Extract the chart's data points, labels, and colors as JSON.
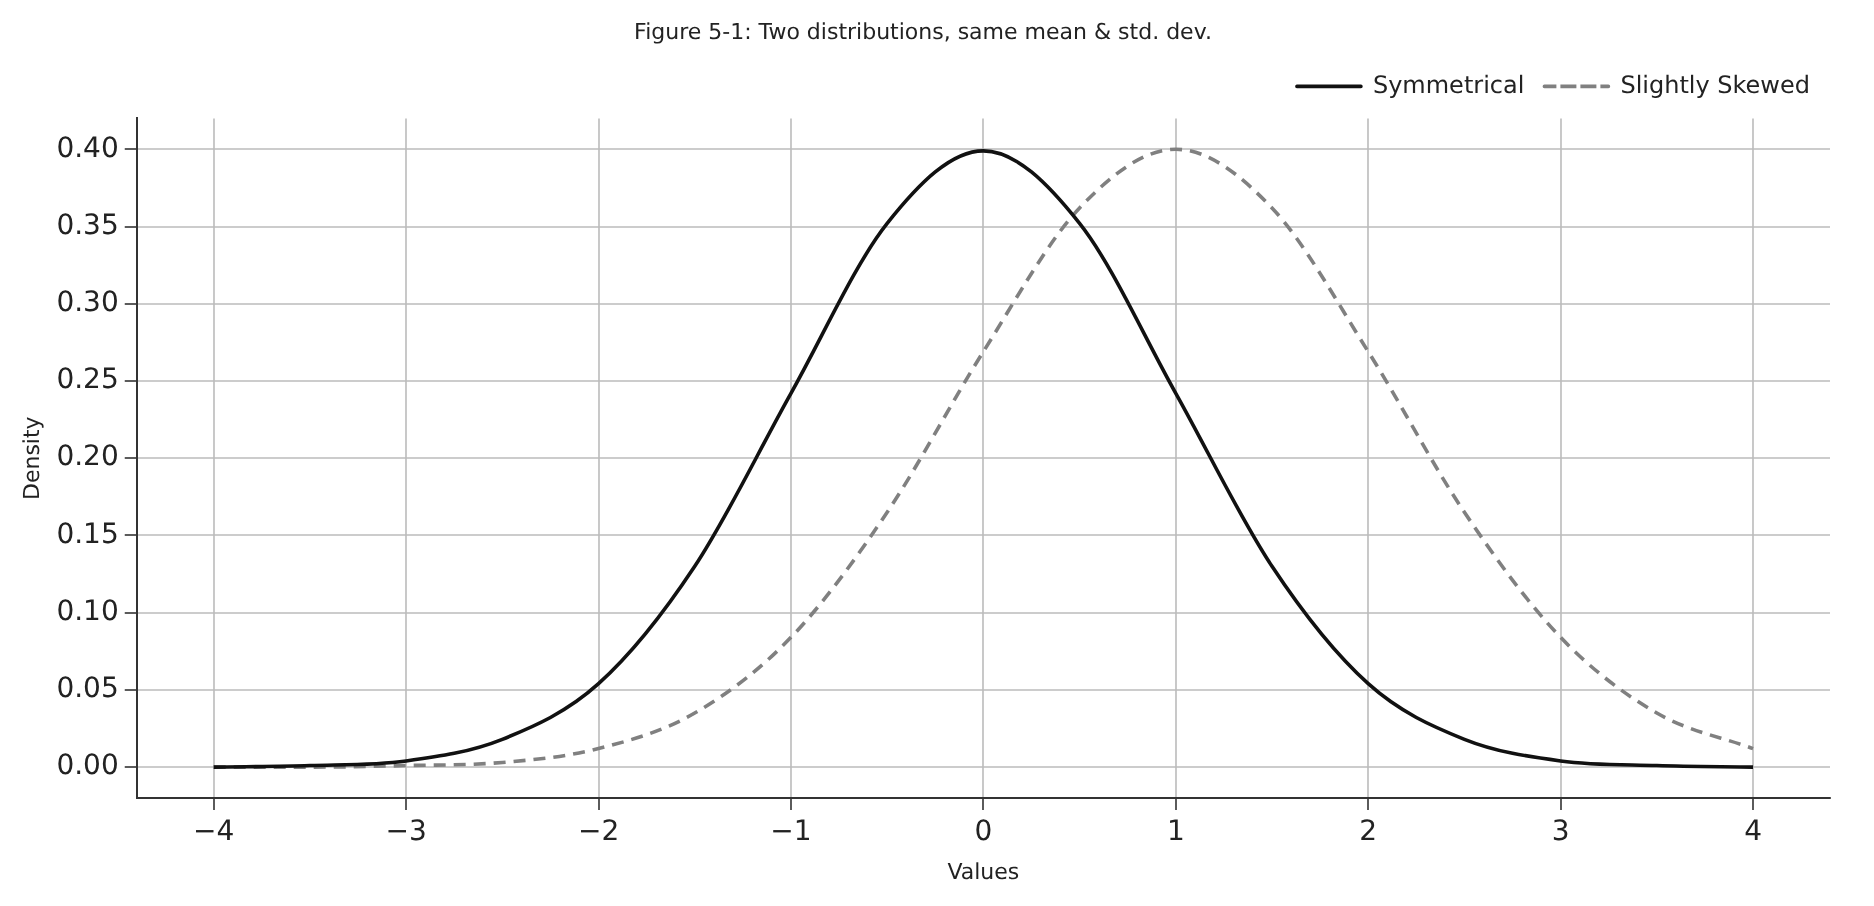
{
  "chart_data": {
    "type": "line",
    "title": "Figure 5-1: Two distributions, same mean & std. dev.",
    "xlabel": "Values",
    "ylabel": "Density",
    "x": [
      -4,
      -3.5,
      -3,
      -2.5,
      -2,
      -1.5,
      -1,
      -0.5,
      0,
      0.5,
      1,
      1.5,
      2,
      2.5,
      3,
      3.5,
      4
    ],
    "series": [
      {
        "name": "Symmetrical",
        "color": "#111111",
        "line_style": "solid",
        "values": [
          0.0,
          0.001,
          0.004,
          0.018,
          0.054,
          0.13,
          0.242,
          0.352,
          0.399,
          0.352,
          0.242,
          0.13,
          0.054,
          0.018,
          0.004,
          0.001,
          0.0
        ]
      },
      {
        "name": "Slightly Skewed",
        "color": "#808080",
        "line_style": "dashed",
        "values": [
          0.0,
          0.0,
          0.001,
          0.003,
          0.012,
          0.035,
          0.084,
          0.165,
          0.269,
          0.362,
          0.4,
          0.362,
          0.269,
          0.165,
          0.084,
          0.035,
          0.012
        ]
      }
    ],
    "xlim": [
      -4.4,
      4.4
    ],
    "xticks": [
      {
        "value": -4,
        "label": "−4"
      },
      {
        "value": -3,
        "label": "−3"
      },
      {
        "value": -2,
        "label": "−2"
      },
      {
        "value": -1,
        "label": "−1"
      },
      0,
      1,
      2,
      3,
      4
    ],
    "ylim": [
      -0.02,
      0.42
    ],
    "yticks": [
      {
        "value": 0,
        "label": "0.00"
      },
      {
        "value": 0.05,
        "label": "0.05"
      },
      {
        "value": 0.1,
        "label": "0.10"
      },
      {
        "value": 0.15,
        "label": "0.15"
      },
      {
        "value": 0.2,
        "label": "0.20"
      },
      {
        "value": 0.25,
        "label": "0.25"
      },
      {
        "value": 0.3,
        "label": "0.30"
      },
      {
        "value": 0.35,
        "label": "0.35"
      },
      {
        "value": 0.4,
        "label": "0.40"
      }
    ],
    "grid": true,
    "legend": "top right",
    "marker": "none"
  }
}
